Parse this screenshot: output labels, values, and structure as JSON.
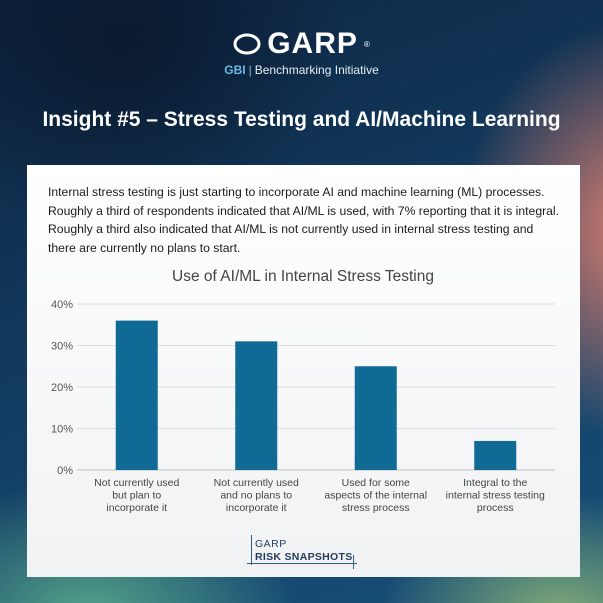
{
  "header": {
    "logo_text": "GARP",
    "logo_mark": "®",
    "sub_gbi": "GBI",
    "sub_separator": "|",
    "sub_text": "Benchmarking Initiative",
    "headline": "Insight #5 – Stress Testing and AI/Machine Learning"
  },
  "intro_text": "Internal stress testing is just starting to incorporate AI and machine learning (ML) processes. Roughly a third of respondents indicated that AI/ML is used, with 7% reporting that it is integral. Roughly a third also indicated that AI/ML is not currently used in internal stress testing and there are currently no plans to start.",
  "chart_data": {
    "type": "bar",
    "title": "Use of AI/ML in Internal Stress Testing",
    "categories": [
      [
        "Not currently used",
        "but plan to",
        "incorporate it"
      ],
      [
        "Not currently used",
        "and no plans to",
        "incorporate it"
      ],
      [
        "Used for some",
        "aspects of the internal",
        "stress process"
      ],
      [
        "Integral to the",
        "internal stress testing",
        "process"
      ]
    ],
    "values": [
      36,
      31,
      25,
      7
    ],
    "y_ticks": [
      "0%",
      "10%",
      "20%",
      "30%",
      "40%"
    ],
    "ylim": [
      0,
      40
    ],
    "grid": true,
    "bar_color": "#0f6a96"
  },
  "footer_brand": {
    "line1": "GARP",
    "line2": "RISK SNAPSHOTS"
  }
}
